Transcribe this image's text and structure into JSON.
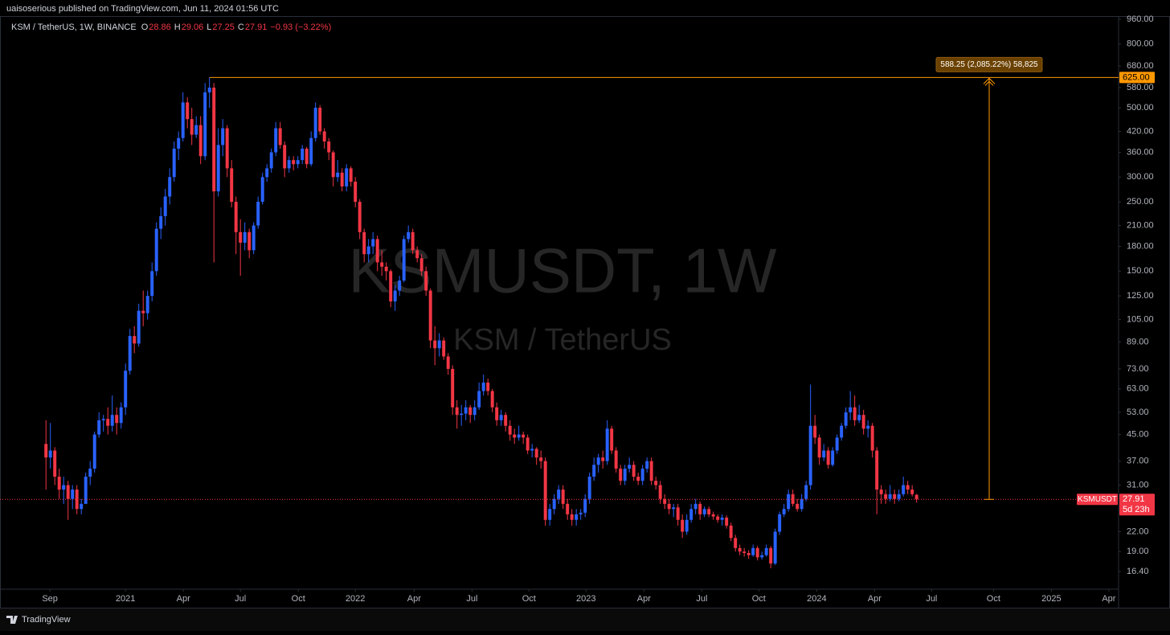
{
  "header": "uaisoserious published on TradingView.com, Jun 11, 2024 01:56 UTC",
  "footer": "TradingView",
  "chart_data": {
    "type": "candlestick",
    "symbol": "KSM / TetherUS, 1W, BINANCE",
    "legend_keys": [
      "O",
      "H",
      "L",
      "C"
    ],
    "legend_values": [
      28.86,
      29.06,
      27.25,
      27.91
    ],
    "change": "−0.93 (−3.22%)",
    "watermark": "KSMUSDT, 1W",
    "watermark_sub": "KSM / TetherUS",
    "up_color": "#2962ff",
    "down_color": "#f23645",
    "log_scale": true,
    "grid": false,
    "xlim": [
      -10.4,
      242.7
    ],
    "xticks": [
      {
        "value": 0.9,
        "label": "Sep"
      },
      {
        "value": 18,
        "label": "2021"
      },
      {
        "value": 31.1,
        "label": "Apr"
      },
      {
        "value": 44,
        "label": "Jul"
      },
      {
        "value": 57.1,
        "label": "Oct"
      },
      {
        "value": 70,
        "label": "2022"
      },
      {
        "value": 83.3,
        "label": "Apr"
      },
      {
        "value": 96.4,
        "label": "Jul"
      },
      {
        "value": 109.3,
        "label": "Oct"
      },
      {
        "value": 122.2,
        "label": "2023"
      },
      {
        "value": 135.3,
        "label": "Apr"
      },
      {
        "value": 148.4,
        "label": "Jul"
      },
      {
        "value": 161.3,
        "label": "Oct"
      },
      {
        "value": 174.4,
        "label": "2024"
      },
      {
        "value": 187.5,
        "label": "Apr"
      },
      {
        "value": 200.4,
        "label": "Jul"
      },
      {
        "value": 214.4,
        "label": "Oct"
      },
      {
        "value": 227.5,
        "label": "2025"
      },
      {
        "value": 240.5,
        "label": "Apr"
      }
    ],
    "ylim": [
      14.4,
      971
    ],
    "yticks": [
      {
        "value": 960,
        "label": "960.00"
      },
      {
        "value": 800,
        "label": "800.00"
      },
      {
        "value": 680,
        "label": "680.00"
      },
      {
        "value": 580,
        "label": "580.00"
      },
      {
        "value": 500,
        "label": "500.00"
      },
      {
        "value": 420,
        "label": "420.00"
      },
      {
        "value": 360,
        "label": "360.00"
      },
      {
        "value": 300,
        "label": "300.00"
      },
      {
        "value": 250,
        "label": "250.00"
      },
      {
        "value": 210,
        "label": "210.00"
      },
      {
        "value": 180,
        "label": "180.00"
      },
      {
        "value": 150,
        "label": "150.00"
      },
      {
        "value": 125,
        "label": "125.00"
      },
      {
        "value": 105,
        "label": "105.00"
      },
      {
        "value": 89,
        "label": "89.00"
      },
      {
        "value": 73,
        "label": "73.00"
      },
      {
        "value": 63,
        "label": "63.00"
      },
      {
        "value": 53,
        "label": "53.00"
      },
      {
        "value": 45,
        "label": "45.00"
      },
      {
        "value": 37,
        "label": "37.00"
      },
      {
        "value": 31,
        "label": "31.00"
      },
      {
        "value": 22,
        "label": "22.00"
      },
      {
        "value": 19,
        "label": "19.00"
      },
      {
        "value": 16.4,
        "label": "16.40"
      }
    ],
    "price_tag": {
      "symbol": "KSMUSDT",
      "price": 27.91,
      "countdown": "5d 23h"
    },
    "measure": {
      "label": "588.25 (2,085.22%) 58,825",
      "target": {
        "value": 625,
        "label": "625.00"
      }
    },
    "ohlc": [
      [
        42,
        50,
        30,
        38
      ],
      [
        38,
        49,
        35,
        40
      ],
      [
        40,
        41,
        31,
        33
      ],
      [
        33,
        35,
        28,
        30
      ],
      [
        30,
        33,
        27,
        31
      ],
      [
        31,
        32,
        24,
        28
      ],
      [
        28,
        31,
        26,
        30
      ],
      [
        30,
        31,
        25,
        26
      ],
      [
        26,
        28,
        25,
        27
      ],
      [
        27,
        34,
        27,
        33
      ],
      [
        33,
        37,
        31,
        35
      ],
      [
        35,
        46,
        34,
        45
      ],
      [
        45,
        53,
        44,
        50
      ],
      [
        50,
        52,
        46,
        50.5
      ],
      [
        50.5,
        55,
        45,
        48
      ],
      [
        48,
        60,
        46,
        52
      ],
      [
        52,
        55,
        45,
        49
      ],
      [
        49,
        57,
        47,
        55
      ],
      [
        55,
        76,
        52,
        72
      ],
      [
        72,
        98,
        70,
        93
      ],
      [
        93,
        100,
        82,
        88
      ],
      [
        88,
        118,
        86,
        112
      ],
      [
        112,
        130,
        100,
        110
      ],
      [
        110,
        130,
        105,
        125
      ],
      [
        125,
        160,
        120,
        150
      ],
      [
        150,
        215,
        145,
        205
      ],
      [
        205,
        240,
        190,
        225
      ],
      [
        225,
        275,
        210,
        260
      ],
      [
        260,
        320,
        245,
        300
      ],
      [
        300,
        390,
        290,
        370
      ],
      [
        370,
        420,
        340,
        400
      ],
      [
        400,
        560,
        390,
        520
      ],
      [
        520,
        540,
        430,
        460
      ],
      [
        460,
        500,
        380,
        410
      ],
      [
        410,
        470,
        400,
        440
      ],
      [
        440,
        470,
        330,
        350
      ],
      [
        350,
        600,
        340,
        560
      ],
      [
        560,
        625,
        500,
        580
      ],
      [
        580,
        600,
        160,
        270
      ],
      [
        270,
        430,
        260,
        380
      ],
      [
        380,
        460,
        350,
        430
      ],
      [
        430,
        440,
        300,
        320
      ],
      [
        320,
        340,
        240,
        250
      ],
      [
        250,
        260,
        170,
        200
      ],
      [
        200,
        220,
        145,
        185
      ],
      [
        185,
        215,
        175,
        200
      ],
      [
        200,
        205,
        165,
        175
      ],
      [
        175,
        215,
        170,
        210
      ],
      [
        210,
        260,
        205,
        250
      ],
      [
        250,
        310,
        245,
        300
      ],
      [
        300,
        330,
        290,
        320
      ],
      [
        320,
        370,
        310,
        360
      ],
      [
        360,
        450,
        350,
        430
      ],
      [
        430,
        450,
        370,
        380
      ],
      [
        380,
        390,
        300,
        320
      ],
      [
        320,
        350,
        310,
        340
      ],
      [
        340,
        350,
        315,
        330
      ],
      [
        330,
        350,
        320,
        340
      ],
      [
        340,
        380,
        330,
        370
      ],
      [
        370,
        375,
        320,
        330
      ],
      [
        330,
        420,
        325,
        400
      ],
      [
        400,
        520,
        390,
        500
      ],
      [
        500,
        510,
        410,
        420
      ],
      [
        420,
        430,
        370,
        390
      ],
      [
        390,
        400,
        340,
        360
      ],
      [
        360,
        365,
        280,
        300
      ],
      [
        300,
        340,
        290,
        310
      ],
      [
        310,
        320,
        270,
        280
      ],
      [
        280,
        330,
        270,
        320
      ],
      [
        320,
        325,
        280,
        290
      ],
      [
        290,
        300,
        240,
        250
      ],
      [
        250,
        255,
        190,
        200
      ],
      [
        200,
        205,
        160,
        170
      ],
      [
        170,
        190,
        160,
        180
      ],
      [
        180,
        200,
        170,
        190
      ],
      [
        190,
        195,
        150,
        160
      ],
      [
        160,
        175,
        145,
        155
      ],
      [
        155,
        160,
        140,
        150
      ],
      [
        150,
        152,
        115,
        120
      ],
      [
        120,
        135,
        112,
        130
      ],
      [
        130,
        145,
        125,
        140
      ],
      [
        140,
        195,
        138,
        190
      ],
      [
        190,
        210,
        185,
        200
      ],
      [
        200,
        205,
        170,
        175
      ],
      [
        175,
        180,
        160,
        165
      ],
      [
        165,
        170,
        145,
        150
      ],
      [
        150,
        155,
        125,
        130
      ],
      [
        130,
        132,
        85,
        90
      ],
      [
        90,
        100,
        75,
        85
      ],
      [
        85,
        95,
        80,
        90
      ],
      [
        90,
        92,
        78,
        80
      ],
      [
        80,
        82,
        70,
        73
      ],
      [
        73,
        75,
        52,
        55
      ],
      [
        55,
        58,
        47,
        52
      ],
      [
        52,
        56,
        48,
        52.5
      ],
      [
        52.5,
        58,
        50,
        55
      ],
      [
        55,
        56,
        49,
        52
      ],
      [
        52,
        58,
        50,
        55
      ],
      [
        55,
        66,
        54,
        62
      ],
      [
        62,
        70,
        60,
        66
      ],
      [
        66,
        68,
        60,
        62
      ],
      [
        62,
        63,
        53,
        55
      ],
      [
        55,
        57,
        48,
        50
      ],
      [
        50,
        54,
        48,
        52
      ],
      [
        52,
        53,
        46,
        48
      ],
      [
        48,
        50,
        43,
        45
      ],
      [
        45,
        47,
        42,
        44
      ],
      [
        44,
        48,
        43,
        45
      ],
      [
        45,
        46,
        42,
        44
      ],
      [
        44,
        45,
        39,
        40
      ],
      [
        40,
        42,
        38,
        40.5
      ],
      [
        40.5,
        41,
        36,
        38
      ],
      [
        38,
        40,
        35,
        37
      ],
      [
        37,
        38,
        23,
        24
      ],
      [
        24,
        27,
        23,
        26
      ],
      [
        26,
        29,
        25,
        28
      ],
      [
        28,
        31,
        27,
        30
      ],
      [
        30,
        31,
        26,
        27
      ],
      [
        27,
        28,
        24,
        25
      ],
      [
        25,
        26,
        23,
        24
      ],
      [
        24,
        26,
        23,
        25
      ],
      [
        25,
        26,
        24,
        25.3
      ],
      [
        25.3,
        29,
        24.5,
        28
      ],
      [
        28,
        34,
        27,
        33
      ],
      [
        33,
        38,
        32,
        36
      ],
      [
        36,
        39,
        34,
        38
      ],
      [
        38,
        40,
        35,
        37
      ],
      [
        37,
        50,
        36,
        47
      ],
      [
        47,
        48,
        39,
        40
      ],
      [
        40,
        41,
        34,
        35
      ],
      [
        35,
        36,
        31,
        32
      ],
      [
        32,
        36,
        31,
        35
      ],
      [
        35,
        38,
        34,
        36
      ],
      [
        36,
        37,
        32,
        33
      ],
      [
        33,
        34,
        31,
        32
      ],
      [
        32,
        36,
        31,
        35
      ],
      [
        35,
        38,
        34,
        37
      ],
      [
        37,
        38,
        31,
        32
      ],
      [
        32,
        33,
        30,
        31
      ],
      [
        31,
        32,
        27,
        28
      ],
      [
        28,
        29,
        26,
        27
      ],
      [
        27,
        28,
        25,
        26
      ],
      [
        26,
        27,
        24.5,
        26.3
      ],
      [
        26.3,
        27,
        23,
        24
      ],
      [
        24,
        25,
        21,
        22
      ],
      [
        22,
        25,
        21.5,
        24
      ],
      [
        24,
        27,
        23.5,
        26
      ],
      [
        26,
        28,
        25,
        27
      ],
      [
        27,
        27.5,
        24,
        25
      ],
      [
        25,
        26.5,
        24.5,
        26
      ],
      [
        26,
        26.5,
        24.5,
        25
      ],
      [
        25,
        25.5,
        24,
        24.6
      ],
      [
        24.6,
        25,
        23.5,
        24
      ],
      [
        24,
        25,
        23,
        24.4
      ],
      [
        24.4,
        24.8,
        22.5,
        23
      ],
      [
        23,
        23.5,
        20.5,
        21
      ],
      [
        21,
        21.5,
        19,
        19.5
      ],
      [
        19.5,
        20,
        18.5,
        19
      ],
      [
        19,
        19.5,
        18.3,
        18.8
      ],
      [
        18.8,
        19.2,
        18,
        18.5
      ],
      [
        18.5,
        20,
        18.3,
        19.5
      ],
      [
        19.5,
        19.8,
        17.8,
        18.2
      ],
      [
        18.2,
        19,
        17.9,
        18.5
      ],
      [
        18.5,
        20,
        18.3,
        19.5
      ],
      [
        19.5,
        19.8,
        16.8,
        17.4
      ],
      [
        17.4,
        22.5,
        17.2,
        22
      ],
      [
        22,
        25.5,
        21.5,
        25
      ],
      [
        25,
        27,
        24.5,
        26
      ],
      [
        26,
        30,
        25.5,
        29
      ],
      [
        29,
        30,
        26.5,
        27
      ],
      [
        27,
        28,
        25.5,
        26
      ],
      [
        26,
        29,
        25.5,
        28
      ],
      [
        28,
        32,
        27.5,
        31
      ],
      [
        31,
        65,
        30,
        48
      ],
      [
        48,
        52,
        42,
        44
      ],
      [
        44,
        45,
        36,
        38
      ],
      [
        38,
        42,
        37,
        40
      ],
      [
        40,
        41,
        35,
        36
      ],
      [
        36,
        41,
        35.5,
        40
      ],
      [
        40,
        45,
        39,
        44
      ],
      [
        44,
        49,
        43,
        48
      ],
      [
        48,
        55,
        47,
        53
      ],
      [
        53,
        62,
        50,
        55
      ],
      [
        55,
        60,
        48,
        50
      ],
      [
        50,
        56,
        49,
        52
      ],
      [
        52,
        54,
        45,
        47
      ],
      [
        47,
        50,
        44,
        48
      ],
      [
        48,
        49,
        38,
        40
      ],
      [
        40,
        41,
        25,
        30
      ],
      [
        30,
        31,
        27,
        29
      ],
      [
        29,
        30,
        27,
        28
      ],
      [
        28,
        31,
        27.5,
        29
      ],
      [
        29,
        30,
        27,
        28
      ],
      [
        28,
        30,
        27.5,
        29
      ],
      [
        29,
        33,
        28.5,
        31
      ],
      [
        31,
        32,
        29,
        30
      ],
      [
        30,
        31,
        28.5,
        29
      ],
      [
        28.86,
        29.06,
        27.25,
        27.91
      ]
    ]
  }
}
